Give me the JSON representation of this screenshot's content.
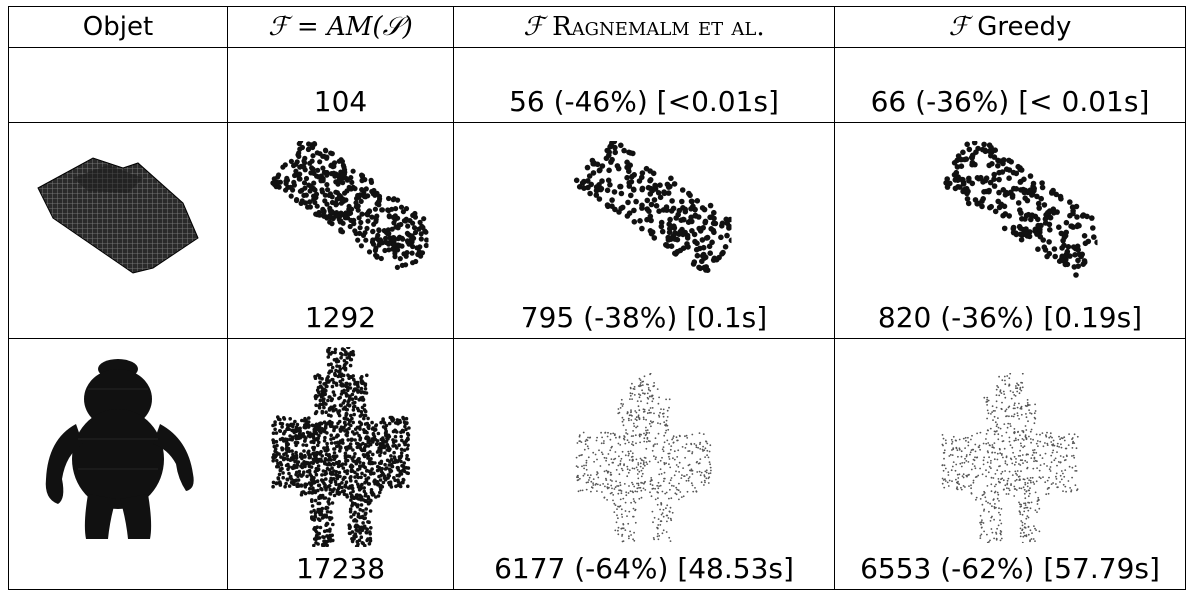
{
  "table": {
    "headers": {
      "object": "Objet",
      "am_prefix": "ℱ = ",
      "am_fn": "AM",
      "am_arg": "(𝒮)",
      "ragnemalm_symbol": "ℱ",
      "ragnemalm_label": "Ragnemalm et al.",
      "greedy_symbol": "ℱ",
      "greedy_label": "Greedy"
    },
    "rows": [
      {
        "object": "",
        "am": "104",
        "ragnemalm": "56 (-46%) [<0.01s]",
        "greedy": "66 (-36%) [< 0.01s]"
      },
      {
        "object": "car-voxel-model",
        "am": "1292",
        "ragnemalm": "795 (-38%) [0.1s]",
        "greedy": "820 (-36%) [0.19s]"
      },
      {
        "object": "figure-voxel-model",
        "am": "17238",
        "ragnemalm": "6177 (-64%) [48.53s]",
        "greedy": "6553 (-62%) [57.79s]"
      }
    ]
  }
}
